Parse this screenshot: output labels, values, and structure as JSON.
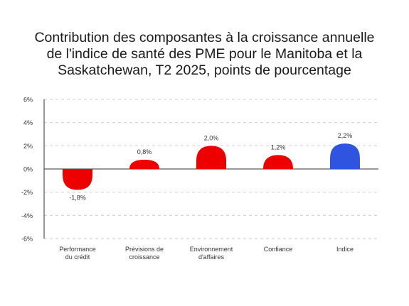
{
  "chart_data": {
    "type": "bar",
    "title_lines": [
      "Contribution des composantes à la croissance annuelle",
      "de l'indice de santé des PME pour le Manitoba et la",
      "Saskatchewan, T2 2025, points de pourcentage"
    ],
    "categories": [
      [
        "Performance",
        "du crédit"
      ],
      [
        "Prévisions de",
        "croissance"
      ],
      [
        "Environnement",
        "d'affaires"
      ],
      [
        "Confiance"
      ],
      [
        "Indice"
      ]
    ],
    "values": [
      -1.8,
      0.8,
      2.0,
      1.2,
      2.2
    ],
    "value_labels": [
      "-1,8%",
      "0,8%",
      "2,0%",
      "1,2%",
      "2,2%"
    ],
    "bar_colors": [
      "#ef0000",
      "#ef0000",
      "#ef0000",
      "#ef0000",
      "#2f55e0"
    ],
    "ylim": [
      -6,
      6
    ],
    "yticks": [
      6,
      4,
      2,
      0,
      -2,
      -4,
      -6
    ],
    "ytick_labels": [
      "6%",
      "4%",
      "2%",
      "0%",
      "-2%",
      "-4%",
      "-6%"
    ],
    "grid": true,
    "xlabel": "",
    "ylabel": ""
  }
}
